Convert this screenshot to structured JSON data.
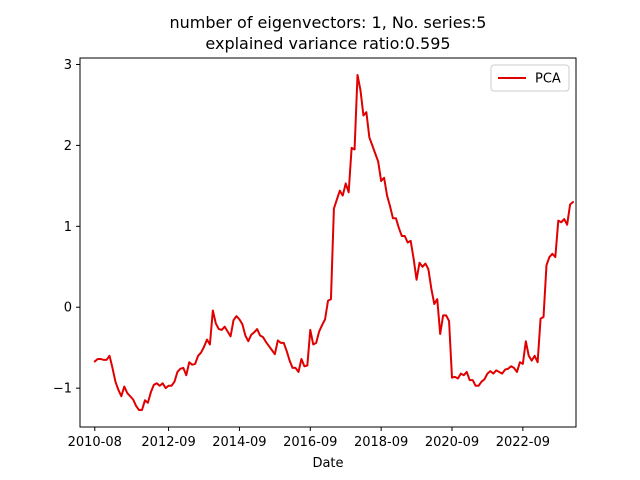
{
  "chart_data": {
    "type": "line",
    "title_line1": "number of eigenvectors: 1, No. series:5",
    "title_line2": "explained variance ratio:0.595",
    "xlabel": "Date",
    "ylabel": "",
    "x_tick_labels": [
      "2010-08",
      "2012-09",
      "2014-09",
      "2016-09",
      "2018-09",
      "2020-09",
      "2022-09"
    ],
    "y_tick_labels": [
      "−1",
      "0",
      "1",
      "2",
      "3"
    ],
    "y_ticks": [
      -1,
      0,
      1,
      2,
      3
    ],
    "ylim": [
      -1.48,
      3.08
    ],
    "xlim": [
      "2010-03",
      "2024-03"
    ],
    "legend_position": "upper right",
    "grid": false,
    "series": [
      {
        "name": "PCA",
        "color": "#e00000",
        "points": [
          [
            "2010-08",
            -0.67
          ],
          [
            "2010-09",
            -0.64
          ],
          [
            "2010-10",
            -0.64
          ],
          [
            "2010-11",
            -0.65
          ],
          [
            "2010-12",
            -0.65
          ],
          [
            "2011-01",
            -0.6
          ],
          [
            "2011-02",
            -0.75
          ],
          [
            "2011-03",
            -0.92
          ],
          [
            "2011-04",
            -1.02
          ],
          [
            "2011-05",
            -1.1
          ],
          [
            "2011-06",
            -0.98
          ],
          [
            "2011-07",
            -1.06
          ],
          [
            "2011-08",
            -1.1
          ],
          [
            "2011-09",
            -1.14
          ],
          [
            "2011-10",
            -1.22
          ],
          [
            "2011-11",
            -1.27
          ],
          [
            "2011-12",
            -1.27
          ],
          [
            "2012-01",
            -1.15
          ],
          [
            "2012-02",
            -1.18
          ],
          [
            "2012-03",
            -1.05
          ],
          [
            "2012-04",
            -0.96
          ],
          [
            "2012-05",
            -0.94
          ],
          [
            "2012-06",
            -0.97
          ],
          [
            "2012-07",
            -0.94
          ],
          [
            "2012-08",
            -1.0
          ],
          [
            "2012-09",
            -0.97
          ],
          [
            "2012-10",
            -0.97
          ],
          [
            "2012-11",
            -0.92
          ],
          [
            "2012-12",
            -0.8
          ],
          [
            "2013-01",
            -0.76
          ],
          [
            "2013-02",
            -0.75
          ],
          [
            "2013-03",
            -0.84
          ],
          [
            "2013-04",
            -0.68
          ],
          [
            "2013-05",
            -0.71
          ],
          [
            "2013-06",
            -0.7
          ],
          [
            "2013-07",
            -0.6
          ],
          [
            "2013-08",
            -0.56
          ],
          [
            "2013-09",
            -0.49
          ],
          [
            "2013-10",
            -0.4
          ],
          [
            "2013-11",
            -0.46
          ],
          [
            "2013-12",
            -0.04
          ],
          [
            "2014-01",
            -0.2
          ],
          [
            "2014-02",
            -0.27
          ],
          [
            "2014-03",
            -0.28
          ],
          [
            "2014-04",
            -0.24
          ],
          [
            "2014-05",
            -0.3
          ],
          [
            "2014-06",
            -0.36
          ],
          [
            "2014-07",
            -0.16
          ],
          [
            "2014-08",
            -0.11
          ],
          [
            "2014-09",
            -0.15
          ],
          [
            "2014-10",
            -0.21
          ],
          [
            "2014-11",
            -0.35
          ],
          [
            "2014-12",
            -0.42
          ],
          [
            "2015-01",
            -0.34
          ],
          [
            "2015-02",
            -0.31
          ],
          [
            "2015-03",
            -0.27
          ],
          [
            "2015-04",
            -0.35
          ],
          [
            "2015-05",
            -0.37
          ],
          [
            "2015-06",
            -0.43
          ],
          [
            "2015-07",
            -0.48
          ],
          [
            "2015-08",
            -0.53
          ],
          [
            "2015-09",
            -0.58
          ],
          [
            "2015-10",
            -0.41
          ],
          [
            "2015-11",
            -0.44
          ],
          [
            "2015-12",
            -0.44
          ],
          [
            "2016-01",
            -0.54
          ],
          [
            "2016-02",
            -0.66
          ],
          [
            "2016-03",
            -0.75
          ],
          [
            "2016-04",
            -0.75
          ],
          [
            "2016-05",
            -0.8
          ],
          [
            "2016-06",
            -0.64
          ],
          [
            "2016-07",
            -0.73
          ],
          [
            "2016-08",
            -0.72
          ],
          [
            "2016-09",
            -0.28
          ],
          [
            "2016-10",
            -0.46
          ],
          [
            "2016-11",
            -0.44
          ],
          [
            "2016-12",
            -0.3
          ],
          [
            "2017-01",
            -0.22
          ],
          [
            "2017-02",
            -0.15
          ],
          [
            "2017-03",
            0.08
          ],
          [
            "2017-04",
            0.1
          ],
          [
            "2017-05",
            1.22
          ],
          [
            "2017-06",
            1.33
          ],
          [
            "2017-07",
            1.44
          ],
          [
            "2017-08",
            1.38
          ],
          [
            "2017-09",
            1.53
          ],
          [
            "2017-10",
            1.42
          ],
          [
            "2017-11",
            1.97
          ],
          [
            "2017-12",
            1.95
          ],
          [
            "2018-01",
            2.87
          ],
          [
            "2018-02",
            2.68
          ],
          [
            "2018-03",
            2.37
          ],
          [
            "2018-04",
            2.41
          ],
          [
            "2018-05",
            2.1
          ],
          [
            "2018-06",
            2.0
          ],
          [
            "2018-07",
            1.9
          ],
          [
            "2018-08",
            1.8
          ],
          [
            "2018-09",
            1.56
          ],
          [
            "2018-10",
            1.6
          ],
          [
            "2018-11",
            1.38
          ],
          [
            "2018-12",
            1.25
          ],
          [
            "2019-01",
            1.1
          ],
          [
            "2019-02",
            1.1
          ],
          [
            "2019-03",
            0.98
          ],
          [
            "2019-04",
            0.88
          ],
          [
            "2019-05",
            0.88
          ],
          [
            "2019-06",
            0.8
          ],
          [
            "2019-07",
            0.82
          ],
          [
            "2019-08",
            0.6
          ],
          [
            "2019-09",
            0.34
          ],
          [
            "2019-10",
            0.55
          ],
          [
            "2019-11",
            0.5
          ],
          [
            "2019-12",
            0.54
          ],
          [
            "2020-01",
            0.47
          ],
          [
            "2020-02",
            0.23
          ],
          [
            "2020-03",
            0.04
          ],
          [
            "2020-04",
            0.1
          ],
          [
            "2020-05",
            -0.33
          ],
          [
            "2020-06",
            -0.1
          ],
          [
            "2020-07",
            -0.1
          ],
          [
            "2020-08",
            -0.17
          ],
          [
            "2020-09",
            -0.87
          ],
          [
            "2020-10",
            -0.86
          ],
          [
            "2020-11",
            -0.88
          ],
          [
            "2020-12",
            -0.82
          ],
          [
            "2021-01",
            -0.84
          ],
          [
            "2021-02",
            -0.8
          ],
          [
            "2021-03",
            -0.9
          ],
          [
            "2021-04",
            -0.9
          ],
          [
            "2021-05",
            -0.97
          ],
          [
            "2021-06",
            -0.97
          ],
          [
            "2021-07",
            -0.92
          ],
          [
            "2021-08",
            -0.89
          ],
          [
            "2021-09",
            -0.82
          ],
          [
            "2021-10",
            -0.79
          ],
          [
            "2021-11",
            -0.82
          ],
          [
            "2021-12",
            -0.78
          ],
          [
            "2022-01",
            -0.8
          ],
          [
            "2022-02",
            -0.82
          ],
          [
            "2022-03",
            -0.77
          ],
          [
            "2022-04",
            -0.76
          ],
          [
            "2022-05",
            -0.73
          ],
          [
            "2022-06",
            -0.75
          ],
          [
            "2022-07",
            -0.8
          ],
          [
            "2022-08",
            -0.68
          ],
          [
            "2022-09",
            -0.7
          ],
          [
            "2022-10",
            -0.42
          ],
          [
            "2022-11",
            -0.6
          ],
          [
            "2022-12",
            -0.66
          ],
          [
            "2023-01",
            -0.6
          ],
          [
            "2023-02",
            -0.68
          ],
          [
            "2023-03",
            -0.14
          ],
          [
            "2023-04",
            -0.12
          ],
          [
            "2023-05",
            0.52
          ],
          [
            "2023-06",
            0.62
          ],
          [
            "2023-07",
            0.66
          ],
          [
            "2023-08",
            0.62
          ],
          [
            "2023-09",
            1.07
          ],
          [
            "2023-10",
            1.05
          ],
          [
            "2023-11",
            1.09
          ],
          [
            "2023-12",
            1.02
          ],
          [
            "2024-01",
            1.27
          ],
          [
            "2024-02",
            1.3
          ]
        ]
      }
    ]
  }
}
